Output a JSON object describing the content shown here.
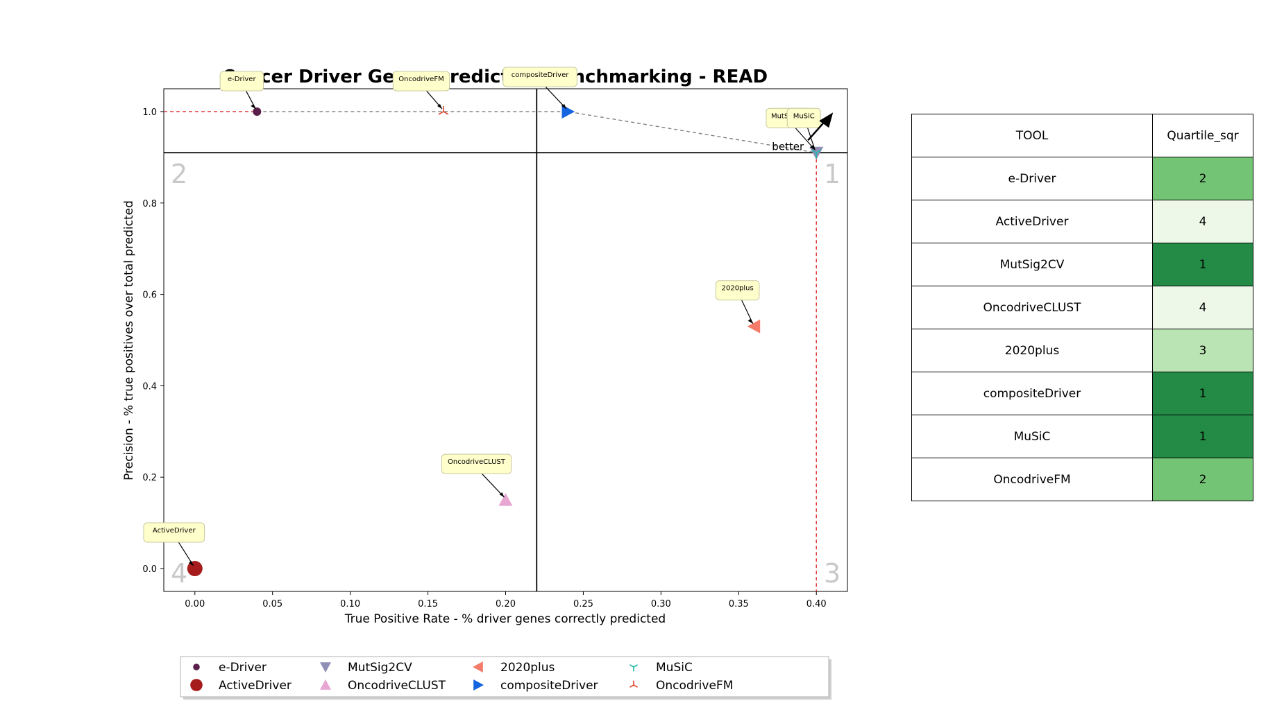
{
  "chart_data": {
    "type": "scatter",
    "title": "Cancer Driver Genes prediction benchmarking - READ",
    "xlabel": "True Positive Rate - % driver genes correctly predicted",
    "ylabel": "Precision - % true positives over total predicted",
    "xlim": [
      -0.02,
      0.42
    ],
    "ylim": [
      -0.05,
      1.05
    ],
    "xticks": [
      "0.00",
      "0.05",
      "0.10",
      "0.15",
      "0.20",
      "0.25",
      "0.30",
      "0.35",
      "0.40"
    ],
    "yticks": [
      "0.0",
      "0.2",
      "0.4",
      "0.6",
      "0.8",
      "1.0"
    ],
    "quadrant_lines": {
      "x": 0.22,
      "y": 0.91
    },
    "quadrant_labels": [
      "1",
      "2",
      "3",
      "4"
    ],
    "better_label": "better",
    "grid": false,
    "legend_position": "bottom",
    "series": [
      {
        "name": "e-Driver",
        "x": 0.04,
        "y": 1.0,
        "marker": "circle-small",
        "color": "#5a1f4a"
      },
      {
        "name": "ActiveDriver",
        "x": 0.0,
        "y": 0.0,
        "marker": "circle",
        "color": "#a61c1c"
      },
      {
        "name": "MutSig2CV",
        "x": 0.4,
        "y": 0.91,
        "marker": "triangle-down",
        "color": "#8f8fb6"
      },
      {
        "name": "OncodriveCLUST",
        "x": 0.2,
        "y": 0.15,
        "marker": "triangle-up",
        "color": "#e8a6d2"
      },
      {
        "name": "2020plus",
        "x": 0.36,
        "y": 0.53,
        "marker": "triangle-left",
        "color": "#f47a6a"
      },
      {
        "name": "compositeDriver",
        "x": 0.24,
        "y": 1.0,
        "marker": "triangle-right",
        "color": "#1565e0"
      },
      {
        "name": "MuSiC",
        "x": 0.4,
        "y": 0.91,
        "marker": "tri-down",
        "color": "#1fb8a8"
      },
      {
        "name": "OncodriveFM",
        "x": 0.16,
        "y": 1.0,
        "marker": "tri-up",
        "color": "#e0452a"
      }
    ],
    "annotation_labels": [
      "e-Driver",
      "ActiveDriver",
      "MutSig2CV",
      "OncodriveCLUST",
      "2020plus",
      "compositeDriver",
      "MuSiC",
      "OncodriveFM"
    ]
  },
  "table": {
    "headers": [
      "TOOL",
      "Quartile_sqr"
    ],
    "rows": [
      {
        "tool": "e-Driver",
        "quartile": "2",
        "color": "#74c476"
      },
      {
        "tool": "ActiveDriver",
        "quartile": "4",
        "color": "#edf8e9"
      },
      {
        "tool": "MutSig2CV",
        "quartile": "1",
        "color": "#238b45"
      },
      {
        "tool": "OncodriveCLUST",
        "quartile": "4",
        "color": "#edf8e9"
      },
      {
        "tool": "2020plus",
        "quartile": "3",
        "color": "#bae4b3"
      },
      {
        "tool": "compositeDriver",
        "quartile": "1",
        "color": "#238b45"
      },
      {
        "tool": "MuSiC",
        "quartile": "1",
        "color": "#238b45"
      },
      {
        "tool": "OncodriveFM",
        "quartile": "2",
        "color": "#74c476"
      }
    ]
  }
}
